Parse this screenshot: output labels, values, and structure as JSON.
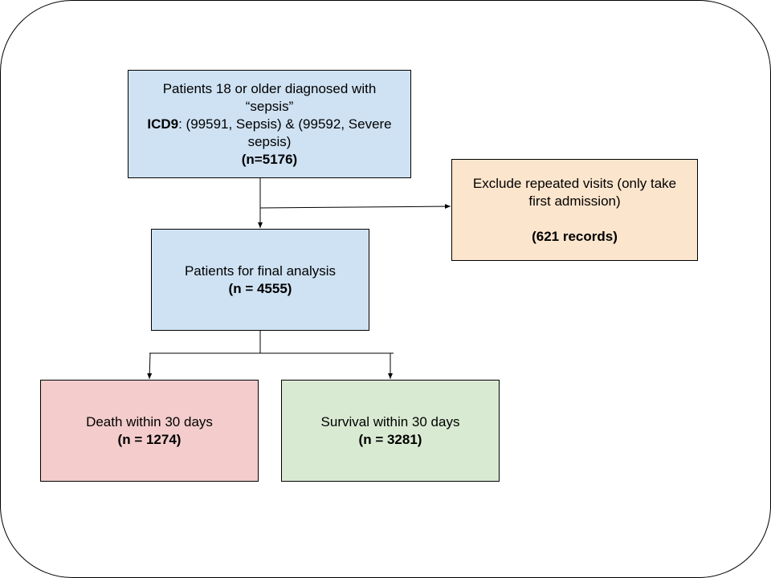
{
  "boxes": {
    "sepsis": {
      "line1": "Patients 18 or older diagnosed with",
      "line2": "“sepsis”",
      "icd_label": "ICD9",
      "icd_text": ": (99591, Sepsis) & (99592, Severe",
      "line4": "sepsis)",
      "count": "(n=5176)",
      "color": "#cfe2f3"
    },
    "exclude": {
      "line1": "Exclude repeated visits (only take",
      "line2": "first admission)",
      "count": "(621 records)",
      "color": "#fce5cd"
    },
    "final": {
      "line1": "Patients for final analysis",
      "count": "(n = 4555)",
      "color": "#cfe2f3"
    },
    "death": {
      "line1": "Death within 30 days",
      "count": "(n = 1274)",
      "color": "#f4cccc"
    },
    "survival": {
      "line1": "Survival within 30 days",
      "count": "(n = 3281)",
      "color": "#d9ead3"
    }
  }
}
